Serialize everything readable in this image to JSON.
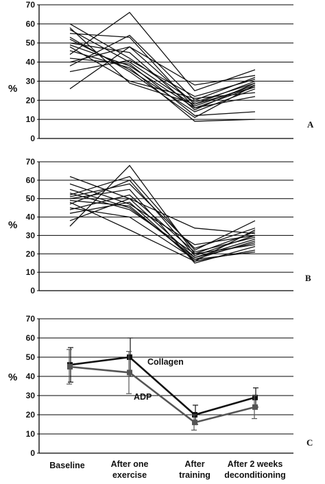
{
  "chart_data": [
    {
      "type": "line",
      "panel_label": "A",
      "ylabel": "%",
      "ylim": [
        0,
        70
      ],
      "yticks": [
        0,
        10,
        20,
        30,
        40,
        50,
        60,
        70
      ],
      "grid": true,
      "categories": [
        "Baseline",
        "After one exercise",
        "After training",
        "After 2 weeks deconditioning"
      ],
      "series": [
        {
          "values": [
            26,
            48,
            18,
            30
          ]
        },
        {
          "values": [
            38,
            54,
            20,
            32
          ]
        },
        {
          "values": [
            60,
            42,
            19,
            29
          ]
        },
        {
          "values": [
            57,
            40,
            17,
            28
          ]
        },
        {
          "values": [
            55,
            53,
            16,
            27
          ]
        },
        {
          "values": [
            52,
            36,
            14,
            26
          ]
        },
        {
          "values": [
            50,
            45,
            15,
            29
          ]
        },
        {
          "values": [
            48,
            30,
            21,
            24
          ]
        },
        {
          "values": [
            46,
            37,
            9,
            10
          ]
        },
        {
          "values": [
            44,
            66,
            25,
            36
          ]
        },
        {
          "values": [
            42,
            39,
            12,
            14
          ]
        },
        {
          "values": [
            40,
            48,
            28,
            33
          ]
        },
        {
          "values": [
            53,
            35,
            11,
            28
          ]
        },
        {
          "values": [
            35,
            41,
            22,
            31
          ]
        },
        {
          "values": [
            58,
            29,
            18,
            27
          ]
        },
        {
          "values": [
            49,
            38,
            16,
            22
          ]
        }
      ]
    },
    {
      "type": "line",
      "panel_label": "B",
      "ylabel": "%",
      "ylim": [
        0,
        70
      ],
      "yticks": [
        0,
        10,
        20,
        30,
        40,
        50,
        60,
        70
      ],
      "grid": true,
      "categories": [
        "Baseline",
        "After one exercise",
        "After training",
        "After 2 weeks deconditioning"
      ],
      "series": [
        {
          "values": [
            35,
            68,
            20,
            32
          ]
        },
        {
          "values": [
            62,
            50,
            34,
            31
          ]
        },
        {
          "values": [
            58,
            47,
            25,
            30
          ]
        },
        {
          "values": [
            55,
            45,
            18,
            28
          ]
        },
        {
          "values": [
            52,
            62,
            22,
            38
          ]
        },
        {
          "values": [
            50,
            55,
            15,
            24
          ]
        },
        {
          "values": [
            48,
            33,
            16,
            22
          ]
        },
        {
          "values": [
            47,
            60,
            19,
            30
          ]
        },
        {
          "values": [
            45,
            40,
            17,
            27
          ]
        },
        {
          "values": [
            44,
            52,
            21,
            29
          ]
        },
        {
          "values": [
            42,
            48,
            16,
            33
          ]
        },
        {
          "values": [
            38,
            50,
            18,
            26
          ]
        },
        {
          "values": [
            53,
            44,
            20,
            25
          ]
        },
        {
          "values": [
            49,
            46,
            17,
            21
          ]
        },
        {
          "values": [
            51,
            58,
            23,
            34
          ]
        }
      ]
    },
    {
      "type": "line",
      "panel_label": "C",
      "ylabel": "%",
      "ylim": [
        0,
        70
      ],
      "yticks": [
        0,
        10,
        20,
        30,
        40,
        50,
        60,
        70
      ],
      "grid": true,
      "categories": [
        "Baseline",
        "After one exercise",
        "After training",
        "After 2 weeks deconditioning"
      ],
      "series": [
        {
          "name": "Collagen",
          "color": "#111111",
          "values": [
            46,
            50,
            20,
            29
          ],
          "errors": [
            9,
            10,
            5,
            5
          ]
        },
        {
          "name": "ADP",
          "color": "#555555",
          "values": [
            45,
            42,
            16,
            24
          ],
          "errors": [
            9,
            11,
            4,
            6
          ]
        }
      ]
    }
  ]
}
